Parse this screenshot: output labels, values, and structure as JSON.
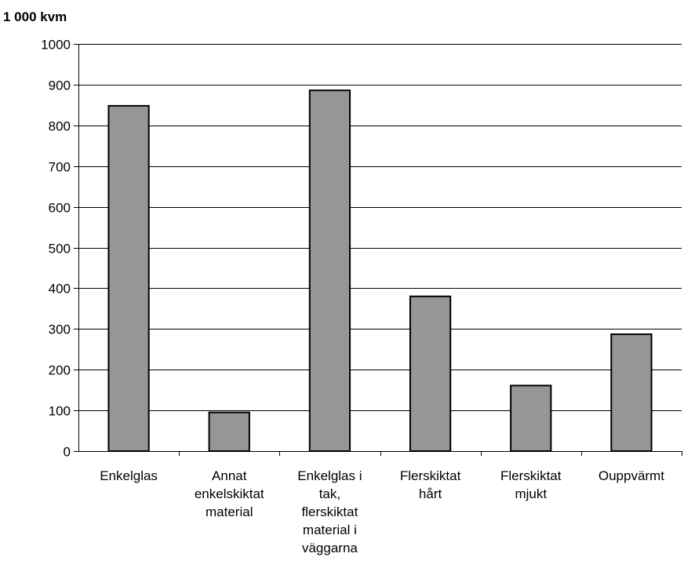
{
  "chart_data": {
    "type": "bar",
    "ylabel": "1 000 kvm",
    "categories": [
      [
        "Enkelglas"
      ],
      [
        "Annat",
        "enkelskiktat",
        "material"
      ],
      [
        "Enkelglas i",
        "tak,",
        "flerskiktat",
        "material i",
        "väggarna"
      ],
      [
        "Flerskiktat",
        "hårt"
      ],
      [
        "Flerskiktat",
        "mjukt"
      ],
      [
        "Ouppvärmt"
      ]
    ],
    "values": [
      848,
      95,
      886,
      380,
      161,
      287
    ],
    "ylim": [
      0,
      1000
    ],
    "yticks": [
      0,
      100,
      200,
      300,
      400,
      500,
      600,
      700,
      800,
      900,
      1000
    ],
    "grid": true,
    "legend": "none",
    "colors": {
      "bar": "#969696",
      "bar_stroke": "#000000",
      "grid": "#000000"
    }
  }
}
